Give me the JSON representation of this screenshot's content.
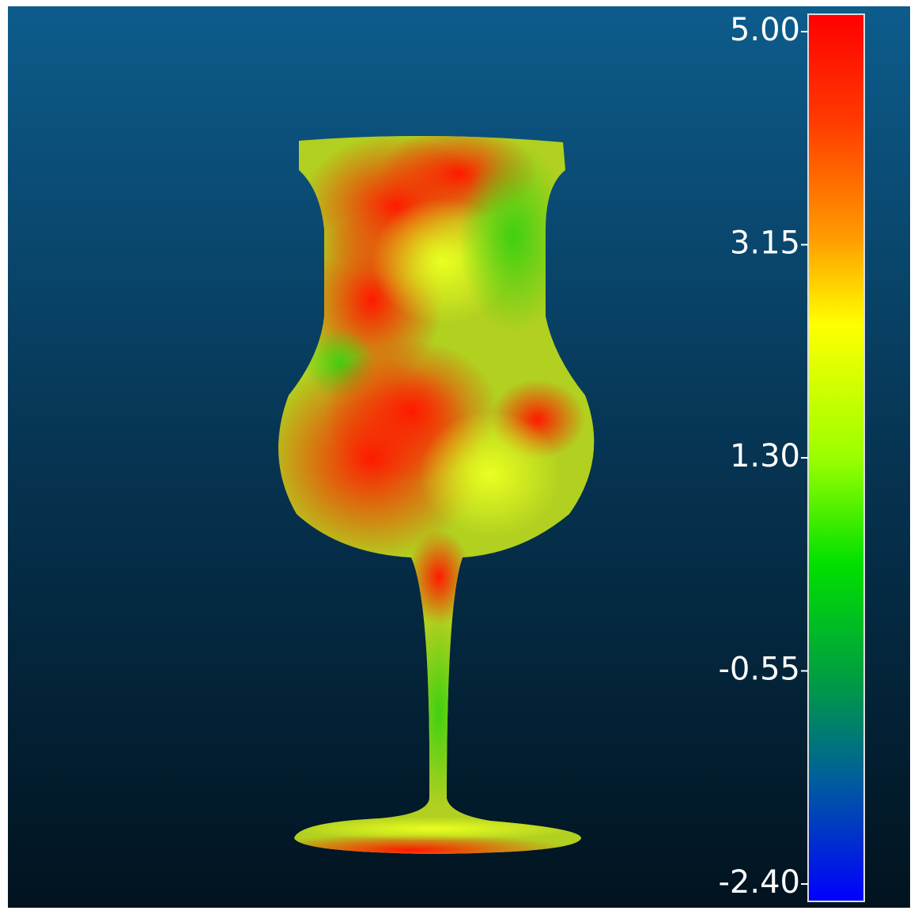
{
  "color_scale": {
    "min": -2.4,
    "max": 5,
    "ticks": [
      {
        "value": 5,
        "label": "5.00"
      },
      {
        "value": 3.15,
        "label": "3.15"
      },
      {
        "value": 1.3,
        "label": "1.30"
      },
      {
        "value": -0.55,
        "label": "-0.55"
      },
      {
        "value": -2.4,
        "label": "-2.40"
      }
    ]
  }
}
